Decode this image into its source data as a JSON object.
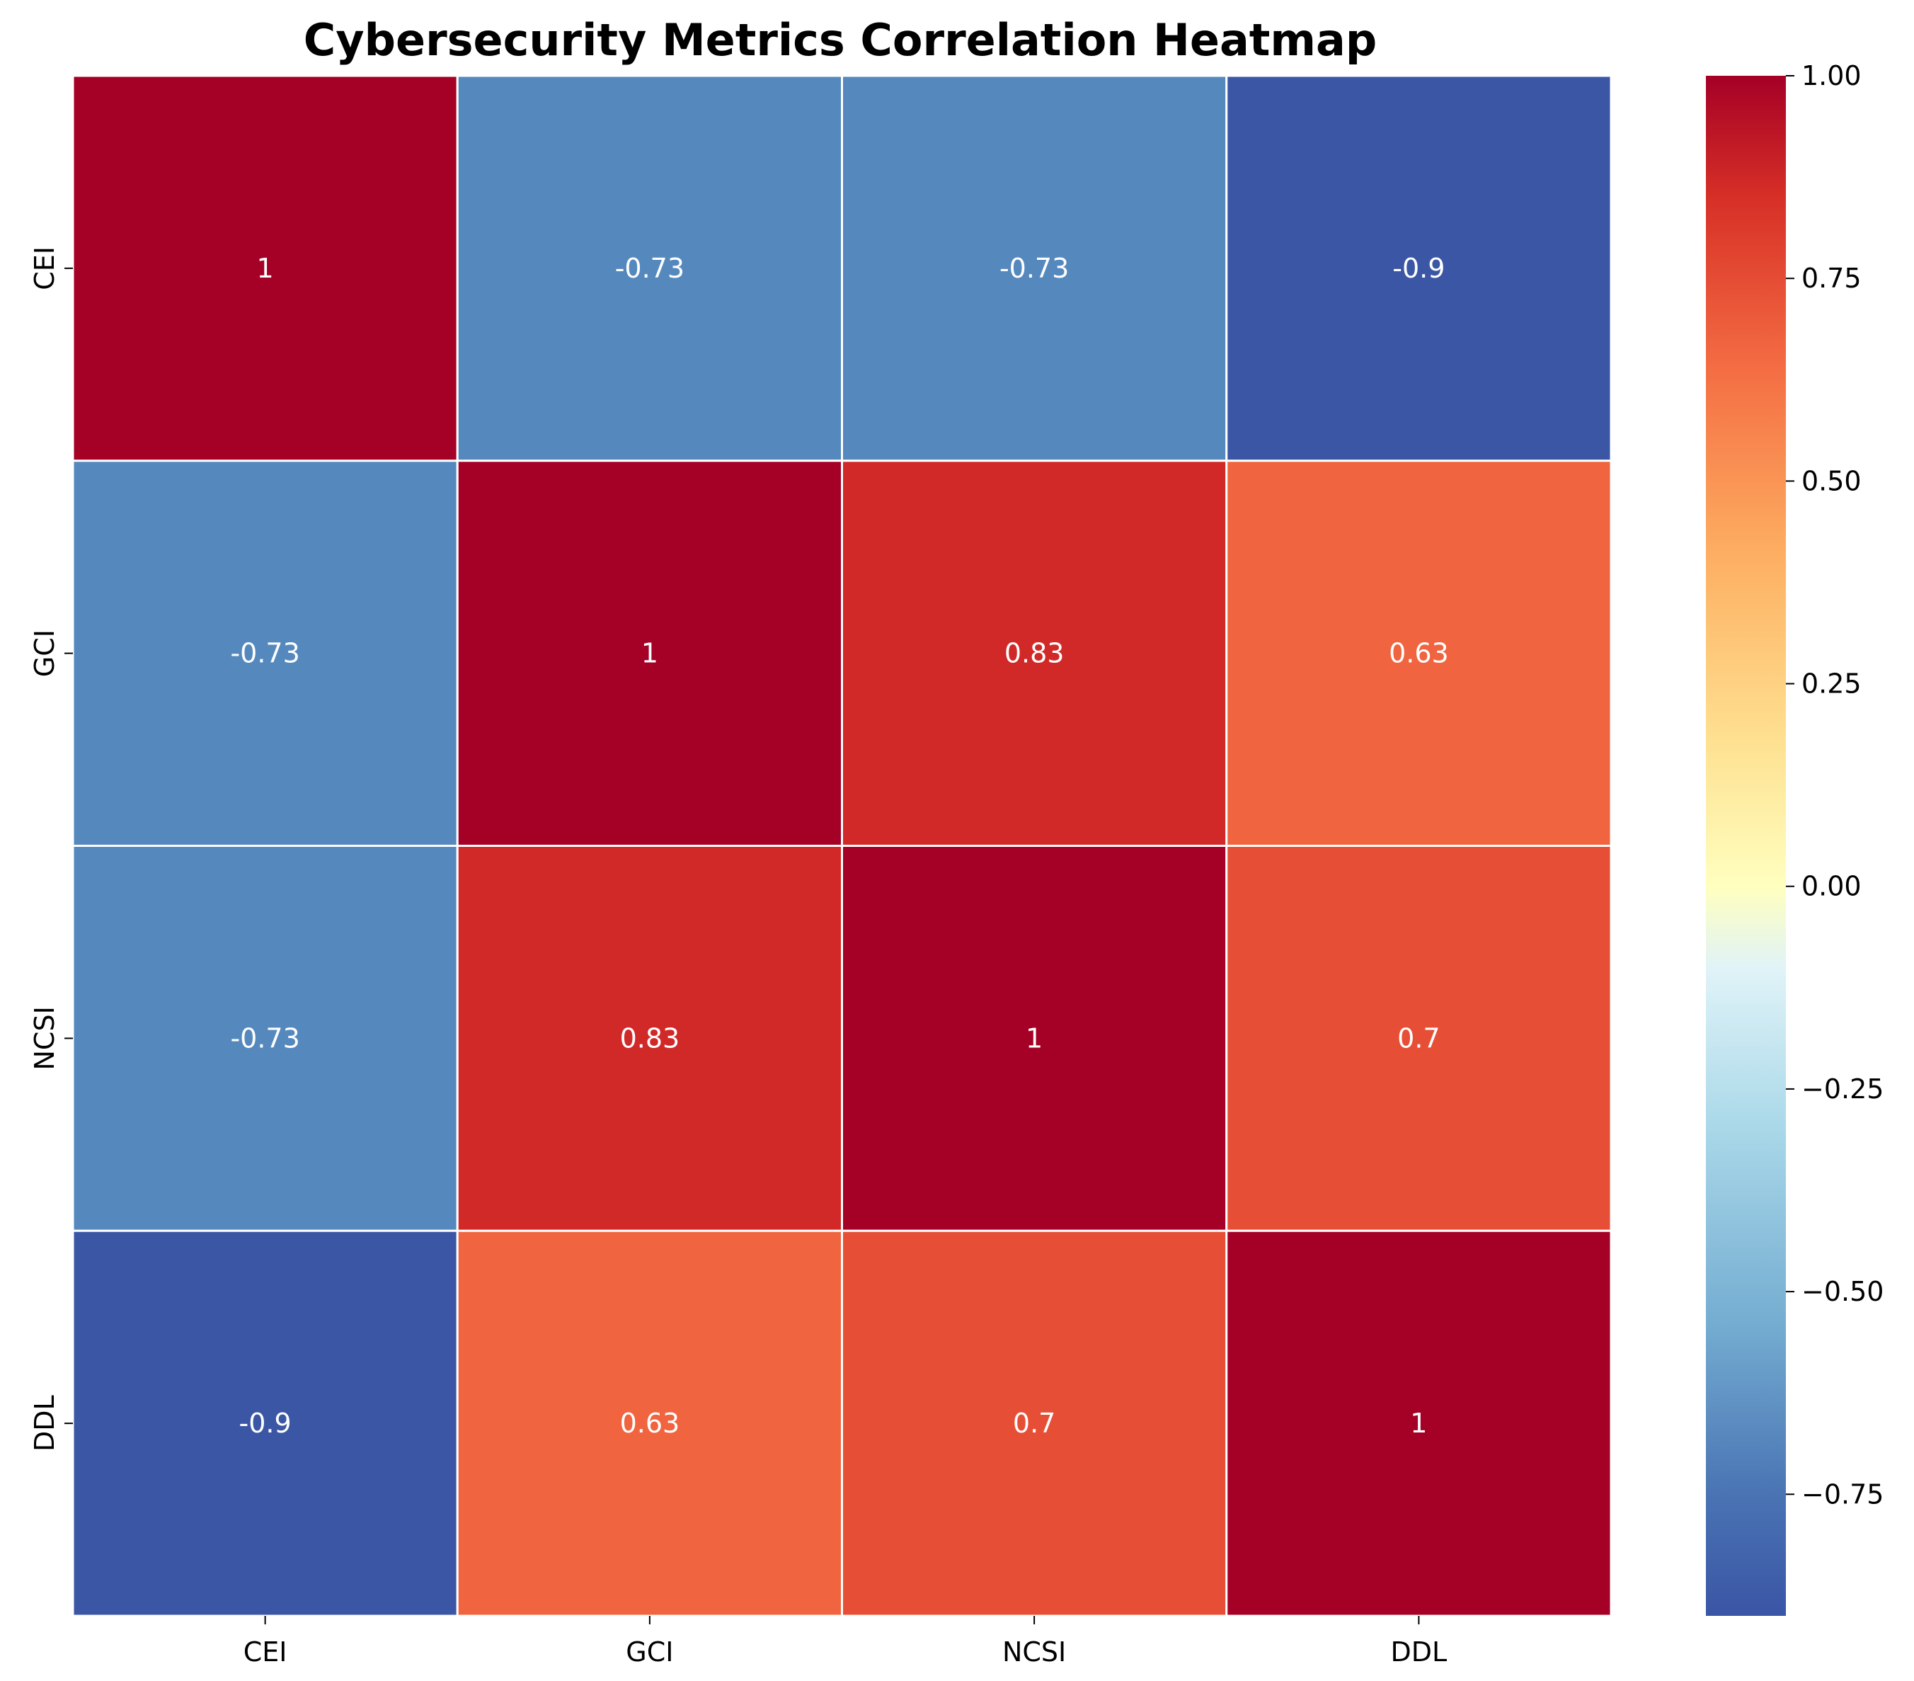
{
  "chart_data": {
    "type": "heatmap",
    "title": "Cybersecurity Metrics Correlation Heatmap",
    "xlabel": "",
    "ylabel": "",
    "rows": [
      "CEI",
      "GCI",
      "NCSI",
      "DDL"
    ],
    "columns": [
      "CEI",
      "GCI",
      "NCSI",
      "DDL"
    ],
    "values": [
      [
        1,
        -0.73,
        -0.73,
        -0.9
      ],
      [
        -0.73,
        1,
        0.83,
        0.63
      ],
      [
        -0.73,
        0.83,
        1,
        0.7
      ],
      [
        -0.9,
        0.63,
        0.7,
        1
      ]
    ],
    "annotations": [
      [
        "1",
        "-0.73",
        "-0.73",
        "-0.9"
      ],
      [
        "-0.73",
        "1",
        "0.83",
        "0.63"
      ],
      [
        "-0.73",
        "0.83",
        "1",
        "0.7"
      ],
      [
        "-0.9",
        "0.63",
        "0.7",
        "1"
      ]
    ],
    "colorbar": {
      "colormap": "RdYlBu_r",
      "range": [
        -0.9,
        1.0
      ],
      "ticks": [
        1.0,
        0.75,
        0.5,
        0.25,
        0.0,
        -0.25,
        -0.5,
        -0.75
      ],
      "tick_labels": [
        "1.00",
        "0.75",
        "0.50",
        "0.25",
        "0.00",
        "−0.25",
        "−0.50",
        "−0.75"
      ]
    },
    "grid_line_color": "#ffffff"
  }
}
